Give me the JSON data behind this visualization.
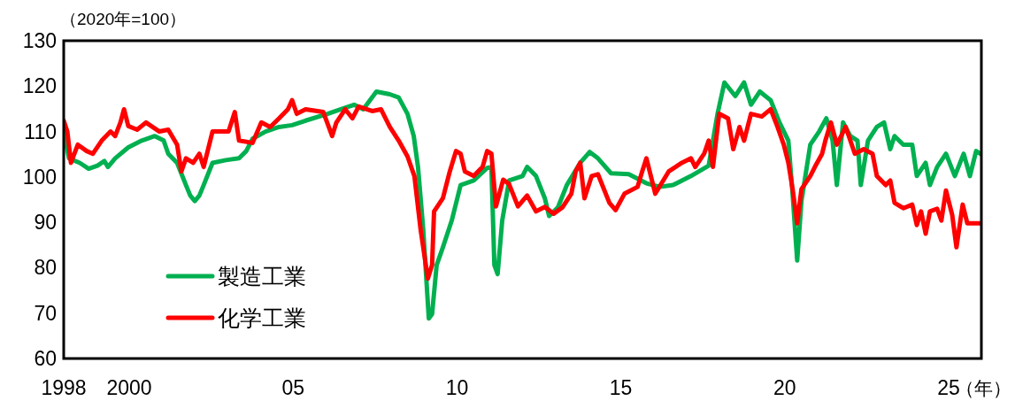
{
  "chart_data": {
    "type": "line",
    "ylabel": "（2020年=100）",
    "xlabel": "（年）",
    "xlim": [
      1998,
      2026
    ],
    "ylim": [
      60,
      130
    ],
    "xticks": [
      1998,
      2000,
      {
        "value": 2005,
        "label": "05"
      },
      {
        "value": 2010,
        "label": "10"
      },
      {
        "value": 2015,
        "label": "15"
      },
      {
        "value": 2020,
        "label": "20"
      },
      {
        "value": 2025,
        "label": "25"
      }
    ],
    "yticks": [
      60,
      70,
      80,
      90,
      100,
      110,
      120,
      130
    ],
    "grid": false,
    "legend": "bottom left",
    "marker": "none",
    "line_style": "solid",
    "series": [
      {
        "name": "製造工業",
        "color": "#00b050",
        "x": [
          1998.0,
          1998.16,
          1998.49,
          1998.76,
          1999.03,
          1999.24,
          1999.35,
          1999.57,
          1999.97,
          2000.38,
          2000.78,
          2001.05,
          2001.19,
          2001.46,
          2001.73,
          2001.86,
          2002.0,
          2002.14,
          2002.27,
          2002.54,
          2002.95,
          2003.35,
          2003.57,
          2003.76,
          2004.16,
          2004.57,
          2004.97,
          2005.38,
          2006.05,
          2006.46,
          2006.86,
          2007.14,
          2007.54,
          2007.95,
          2008.22,
          2008.49,
          2008.68,
          2008.81,
          2008.97,
          2009.14,
          2009.24,
          2009.38,
          2009.57,
          2009.84,
          2010.11,
          2010.51,
          2010.92,
          2011.05,
          2011.14,
          2011.24,
          2011.38,
          2011.59,
          2012.0,
          2012.14,
          2012.41,
          2012.68,
          2012.81,
          2013.08,
          2013.35,
          2013.76,
          2014.05,
          2014.3,
          2014.7,
          2015.24,
          2015.78,
          2016.19,
          2016.59,
          2017.14,
          2017.68,
          2017.95,
          2018.16,
          2018.49,
          2018.76,
          2018.97,
          2019.24,
          2019.57,
          2019.84,
          2020.11,
          2020.24,
          2020.38,
          2020.51,
          2020.78,
          2021.05,
          2021.27,
          2021.46,
          2021.59,
          2021.78,
          2022.0,
          2022.22,
          2022.32,
          2022.54,
          2022.81,
          2023.03,
          2023.22,
          2023.35,
          2023.62,
          2023.89,
          2024.03,
          2024.3,
          2024.43,
          2024.65,
          2024.92,
          2025.19,
          2025.46,
          2025.65,
          2025.84,
          2025.97
        ],
        "values": [
          110.0,
          104.1,
          103.1,
          101.8,
          102.5,
          103.5,
          102.2,
          104.1,
          106.5,
          108.0,
          109.0,
          108.0,
          105.1,
          103.1,
          98.2,
          95.9,
          94.7,
          95.9,
          98.2,
          103.1,
          103.7,
          104.1,
          105.7,
          108.4,
          110.0,
          111.0,
          111.4,
          112.4,
          113.9,
          114.9,
          115.9,
          114.9,
          118.8,
          118.2,
          117.5,
          113.9,
          109.0,
          102.2,
          88.4,
          68.8,
          69.8,
          80.6,
          84.5,
          90.4,
          98.2,
          99.2,
          102.0,
          102.2,
          80.6,
          78.6,
          90.4,
          99.2,
          100.2,
          102.2,
          100.2,
          95.3,
          91.4,
          93.3,
          98.2,
          103.1,
          105.5,
          104.1,
          100.8,
          100.6,
          98.6,
          97.8,
          98.2,
          100.2,
          102.5,
          113.9,
          120.8,
          117.8,
          120.8,
          115.9,
          118.8,
          116.9,
          112.0,
          108.0,
          96.3,
          81.6,
          94.7,
          107.1,
          110.0,
          112.9,
          108.0,
          98.2,
          112.0,
          109.0,
          108.0,
          98.2,
          108.0,
          111.0,
          112.0,
          106.1,
          109.0,
          107.1,
          107.1,
          100.2,
          103.1,
          98.2,
          102.2,
          105.1,
          100.2,
          105.1,
          100.2,
          105.7,
          105.1
        ]
      },
      {
        "name": "化学工業",
        "color": "#ff0000",
        "x": [
          1998.0,
          1998.11,
          1998.22,
          1998.43,
          1998.7,
          1998.89,
          1999.16,
          1999.43,
          1999.57,
          1999.73,
          1999.84,
          1999.97,
          2000.24,
          2000.51,
          2000.92,
          2001.19,
          2001.46,
          2001.59,
          2001.73,
          2001.95,
          2002.14,
          2002.27,
          2002.54,
          2002.68,
          2003.03,
          2003.22,
          2003.35,
          2003.76,
          2004.03,
          2004.3,
          2004.57,
          2004.84,
          2004.97,
          2005.11,
          2005.38,
          2005.92,
          2006.19,
          2006.32,
          2006.59,
          2006.81,
          2007.0,
          2007.41,
          2007.68,
          2007.95,
          2008.22,
          2008.49,
          2008.7,
          2008.89,
          2009.11,
          2009.24,
          2009.3,
          2009.57,
          2009.78,
          2009.97,
          2010.11,
          2010.24,
          2010.51,
          2010.78,
          2010.92,
          2011.05,
          2011.19,
          2011.41,
          2011.59,
          2011.86,
          2012.14,
          2012.41,
          2012.68,
          2012.95,
          2013.22,
          2013.49,
          2013.62,
          2013.76,
          2013.89,
          2014.11,
          2014.3,
          2014.65,
          2014.84,
          2015.11,
          2015.51,
          2015.65,
          2015.78,
          2016.05,
          2016.46,
          2016.86,
          2017.14,
          2017.27,
          2017.54,
          2017.68,
          2017.81,
          2018.0,
          2018.27,
          2018.43,
          2018.62,
          2018.76,
          2018.97,
          2019.3,
          2019.57,
          2019.78,
          2019.97,
          2020.11,
          2020.24,
          2020.38,
          2020.51,
          2020.78,
          2020.92,
          2021.14,
          2021.24,
          2021.41,
          2021.59,
          2021.86,
          2022.14,
          2022.41,
          2022.68,
          2022.81,
          2023.08,
          2023.22,
          2023.35,
          2023.62,
          2023.89,
          2024.03,
          2024.16,
          2024.3,
          2024.43,
          2024.65,
          2024.78,
          2024.92,
          2025.11,
          2025.24,
          2025.43,
          2025.57,
          2025.97
        ],
        "values": [
          112.4,
          110.0,
          103.1,
          107.1,
          105.7,
          105.1,
          108.0,
          110.0,
          109.0,
          112.0,
          114.9,
          111.2,
          110.4,
          112.0,
          110.0,
          110.4,
          107.1,
          101.2,
          104.1,
          103.1,
          105.1,
          102.2,
          110.0,
          110.0,
          110.0,
          114.3,
          108.0,
          107.5,
          112.0,
          111.0,
          112.9,
          114.9,
          116.9,
          113.9,
          114.9,
          114.3,
          109.0,
          112.0,
          114.9,
          112.9,
          115.5,
          114.5,
          114.9,
          111.0,
          108.0,
          104.5,
          100.2,
          88.4,
          77.6,
          80.6,
          92.4,
          95.3,
          101.2,
          105.7,
          105.1,
          101.2,
          100.2,
          102.2,
          105.7,
          105.1,
          93.5,
          99.4,
          98.4,
          93.5,
          95.9,
          92.4,
          93.4,
          91.9,
          93.3,
          96.3,
          101.2,
          103.1,
          95.3,
          100.2,
          100.6,
          94.3,
          92.7,
          96.3,
          97.8,
          101.2,
          104.1,
          96.3,
          101.2,
          103.1,
          104.1,
          102.2,
          105.1,
          108.0,
          102.2,
          113.9,
          112.9,
          106.1,
          111.0,
          108.0,
          113.9,
          113.3,
          114.9,
          111.0,
          107.1,
          103.1,
          97.3,
          89.8,
          97.3,
          100.2,
          102.2,
          105.1,
          108.0,
          112.0,
          107.1,
          111.0,
          105.1,
          106.1,
          105.1,
          100.2,
          98.2,
          99.2,
          94.3,
          93.1,
          93.9,
          89.4,
          92.4,
          87.5,
          92.4,
          93.0,
          90.4,
          97.0,
          91.6,
          84.5,
          93.9,
          89.8,
          89.8
        ]
      }
    ]
  }
}
